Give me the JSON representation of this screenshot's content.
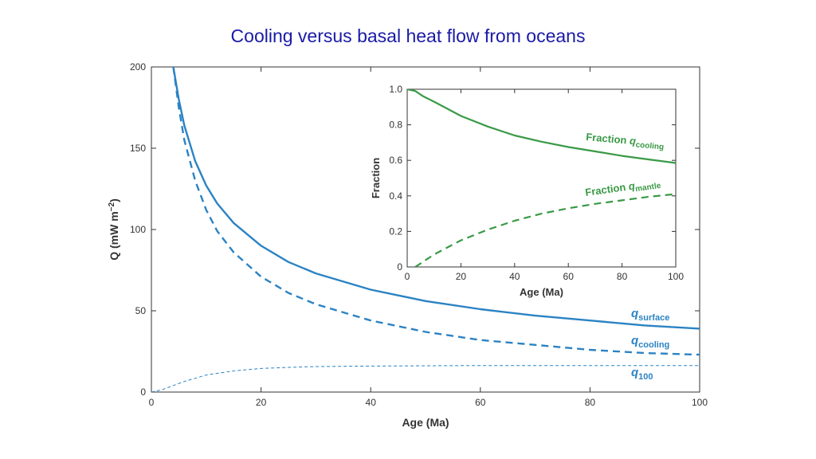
{
  "slide": {
    "title": "Cooling versus basal heat flow from oceans"
  },
  "colors": {
    "title": "#1a1aa6",
    "blue": "#2b83c3",
    "green": "#3a9a46",
    "axis": "#333333"
  },
  "chart_data": [
    {
      "type": "line",
      "title": "",
      "xlabel": "Age (Ma)",
      "ylabel_main": "Q (mW m",
      "ylabel_sup": "−2",
      "ylabel_close": ")",
      "xlim": [
        0,
        100
      ],
      "ylim": [
        0,
        200
      ],
      "xticks": [
        "0",
        "20",
        "40",
        "60",
        "80",
        "100"
      ],
      "yticks": [
        "0",
        "50",
        "100",
        "150",
        "200"
      ],
      "grid": false,
      "series": [
        {
          "name": "surface",
          "label_q": "q",
          "label_sub": "surface",
          "style": "solid",
          "x": [
            4,
            5,
            6,
            8,
            10,
            12,
            15,
            20,
            25,
            30,
            40,
            50,
            60,
            70,
            80,
            90,
            100
          ],
          "y": [
            200,
            180,
            164,
            142,
            127,
            116,
            104,
            90,
            80,
            73,
            63,
            56,
            51,
            47,
            44,
            41,
            39
          ]
        },
        {
          "name": "cooling",
          "label_q": "q",
          "label_sub": "cooling",
          "style": "dashed",
          "x": [
            4,
            5,
            6,
            8,
            10,
            12,
            15,
            20,
            25,
            30,
            40,
            50,
            60,
            70,
            80,
            90,
            100
          ],
          "y": [
            200,
            175,
            155,
            130,
            112,
            99,
            86,
            71,
            61,
            54,
            44,
            37,
            32,
            29,
            26,
            24,
            23
          ]
        },
        {
          "name": "100",
          "label_q": "q",
          "label_sub": "100",
          "style": "fine-dashed",
          "x": [
            0,
            2,
            4,
            6,
            8,
            10,
            15,
            20,
            25,
            30,
            40,
            50,
            60,
            80,
            100
          ],
          "y": [
            0,
            1.5,
            4,
            6.5,
            8.5,
            10.5,
            13,
            14.5,
            15.2,
            15.7,
            16,
            16.2,
            16.3,
            16.3,
            16.3
          ]
        }
      ]
    },
    {
      "type": "line",
      "title": "",
      "xlabel": "Age (Ma)",
      "ylabel": "Fraction",
      "xlim": [
        0,
        100
      ],
      "ylim": [
        0,
        1
      ],
      "xticks": [
        "0",
        "20",
        "40",
        "60",
        "80",
        "100"
      ],
      "yticks": [
        "0",
        "0.2",
        "0.4",
        "0.6",
        "0.8",
        "1.0"
      ],
      "grid": false,
      "series": [
        {
          "name": "Fraction q cooling",
          "label_prefix": "Fraction ",
          "label_q": "q",
          "label_sub": "cooling",
          "style": "solid",
          "x": [
            0,
            3,
            6,
            10,
            15,
            20,
            30,
            40,
            50,
            60,
            70,
            80,
            90,
            100
          ],
          "y": [
            1.0,
            0.99,
            0.96,
            0.93,
            0.89,
            0.85,
            0.79,
            0.74,
            0.705,
            0.675,
            0.65,
            0.625,
            0.605,
            0.585
          ]
        },
        {
          "name": "Fraction q mantle",
          "label_prefix": "Fraction ",
          "label_q": "q",
          "label_sub": "mantle",
          "style": "dashed",
          "x": [
            3,
            6,
            10,
            15,
            20,
            30,
            40,
            50,
            60,
            70,
            80,
            90,
            100
          ],
          "y": [
            0.0,
            0.03,
            0.07,
            0.11,
            0.15,
            0.21,
            0.26,
            0.3,
            0.33,
            0.355,
            0.375,
            0.395,
            0.41
          ]
        }
      ]
    }
  ]
}
